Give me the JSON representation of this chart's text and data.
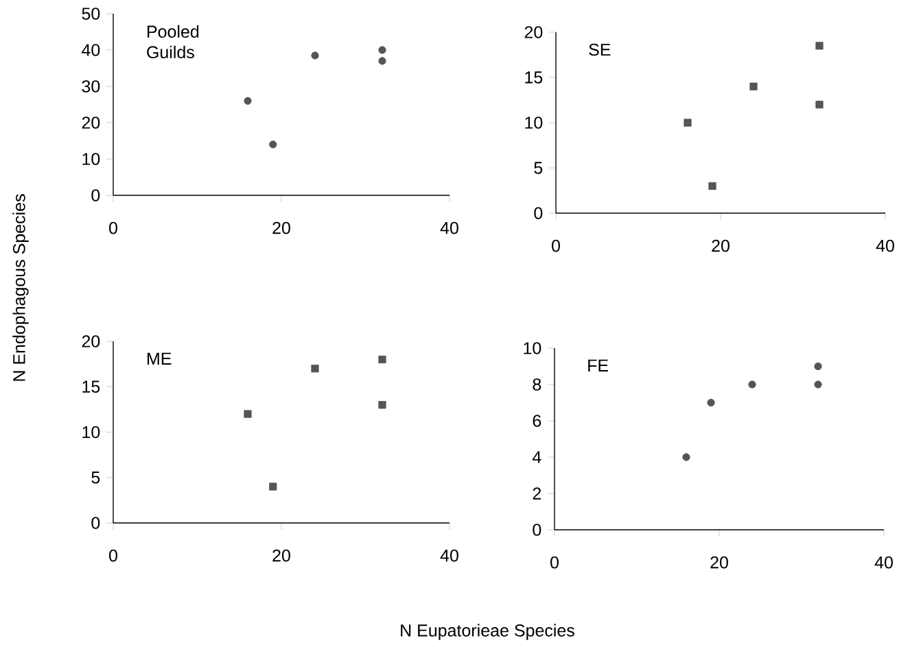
{
  "chart_data": [
    {
      "type": "scatter",
      "title": "Pooled Guilds",
      "ylabel": "N Endophagous Species",
      "marker": "circle",
      "x": [
        16,
        19,
        24,
        32,
        32
      ],
      "series": [
        {
          "color": "#555555",
          "values": [
            26,
            14,
            38.5,
            40,
            37
          ]
        }
      ],
      "xlim": [
        0,
        40
      ],
      "xticks": [
        0,
        20,
        40
      ],
      "ylim": [
        0,
        50
      ],
      "yticks": [
        0,
        10,
        20,
        30,
        40,
        50
      ]
    },
    {
      "type": "scatter",
      "title": "SE",
      "marker": "square",
      "x": [
        16,
        19,
        24,
        32,
        32
      ],
      "series": [
        {
          "color": "#555555",
          "values": [
            10,
            3,
            14,
            18.5,
            12
          ]
        }
      ],
      "xlim": [
        0,
        40
      ],
      "xticks": [
        0,
        20,
        40
      ],
      "ylim": [
        0,
        20
      ],
      "yticks": [
        0,
        5,
        10,
        15,
        20
      ]
    },
    {
      "type": "scatter",
      "title": "ME",
      "xlabel": "N Eupatorieae Species",
      "marker": "square",
      "x": [
        16,
        19,
        24,
        32,
        32
      ],
      "series": [
        {
          "color": "#555555",
          "values": [
            12,
            4,
            17,
            18,
            13
          ]
        }
      ],
      "xlim": [
        0,
        40
      ],
      "xticks": [
        0,
        20,
        40
      ],
      "ylim": [
        0,
        20
      ],
      "yticks": [
        0,
        5,
        10,
        15,
        20
      ]
    },
    {
      "type": "scatter",
      "title": "FE",
      "marker": "circle",
      "x": [
        16,
        19,
        24,
        32,
        32
      ],
      "series": [
        {
          "color": "#555555",
          "values": [
            4,
            7,
            8,
            9,
            8
          ]
        }
      ],
      "xlim": [
        0,
        40
      ],
      "xticks": [
        0,
        20,
        40
      ],
      "ylim": [
        0,
        10
      ],
      "yticks": [
        0,
        2,
        4,
        6,
        8,
        10
      ]
    }
  ]
}
